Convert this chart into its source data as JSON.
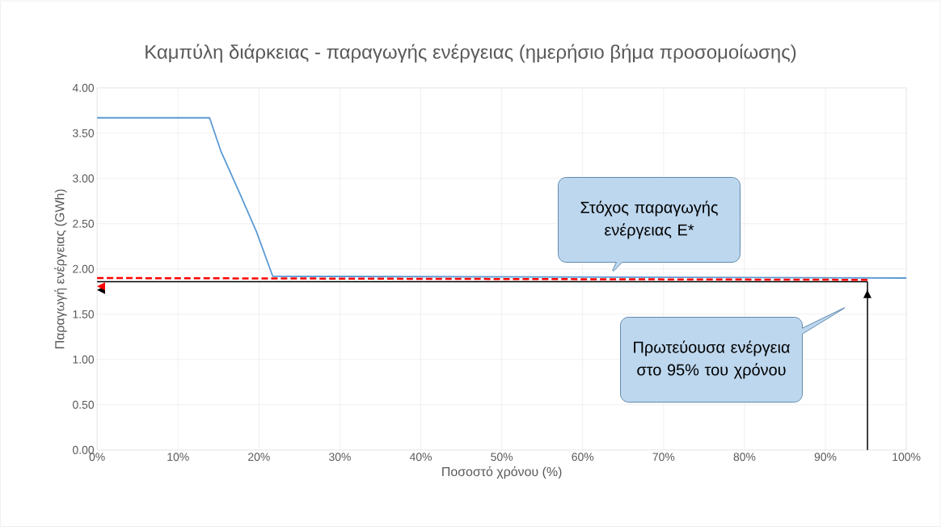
{
  "chart_data": {
    "type": "line",
    "title": "Καμπύλη διάρκειας - παραγωγής ενέργειας  (ημερήσιο βήμα προσομοίωσης)",
    "xlabel": "Ποσοστό χρόνου (%)",
    "ylabel": "Παραγωγή ενέργειας (GWh)",
    "series": [
      {
        "color": "#5b9bd5",
        "x": [
          0,
          13.9,
          15.3,
          17.7,
          19.7,
          21.7,
          100
        ],
        "values": [
          3.67,
          3.67,
          3.3,
          2.82,
          2.41,
          1.92,
          1.9
        ]
      },
      {
        "color": "#000000",
        "line_style": "solid",
        "x": [
          95.2,
          0
        ],
        "values": [
          1.86,
          1.86
        ]
      },
      {
        "color": "#000000",
        "line_style": "solid",
        "x": [
          95.2,
          95.2
        ],
        "values": [
          0,
          1.86
        ]
      },
      {
        "color": "#ff0000",
        "line_style": "dashed",
        "x": [
          95.2,
          0
        ],
        "values": [
          1.88,
          1.9
        ]
      }
    ],
    "xlim": [
      0,
      100
    ],
    "ylim": [
      0,
      4
    ],
    "xticks": [
      {
        "value": 0,
        "label": "0%"
      },
      {
        "value": 10,
        "label": "10%"
      },
      {
        "value": 20,
        "label": "20%"
      },
      {
        "value": 30,
        "label": "30%"
      },
      {
        "value": 40,
        "label": "40%"
      },
      {
        "value": 50,
        "label": "50%"
      },
      {
        "value": 60,
        "label": "60%"
      },
      {
        "value": 70,
        "label": "70%"
      },
      {
        "value": 80,
        "label": "80%"
      },
      {
        "value": 90,
        "label": "90%"
      },
      {
        "value": 100,
        "label": "100%"
      }
    ],
    "yticks": [
      {
        "value": 0,
        "label": "0.00"
      },
      {
        "value": 0.5,
        "label": "0.50"
      },
      {
        "value": 1,
        "label": "1.00"
      },
      {
        "value": 1.5,
        "label": "1.50"
      },
      {
        "value": 2,
        "label": "2.00"
      },
      {
        "value": 2.5,
        "label": "2.50"
      },
      {
        "value": 3,
        "label": "3.00"
      },
      {
        "value": 3.5,
        "label": "3.50"
      },
      {
        "value": 4,
        "label": "4.00"
      }
    ],
    "grid": true,
    "annotations": [
      "Στόχος παραγωγής ενέργειας E*",
      "Πρωτεύουσα ενέργεια στο 95% του χρόνου"
    ]
  }
}
